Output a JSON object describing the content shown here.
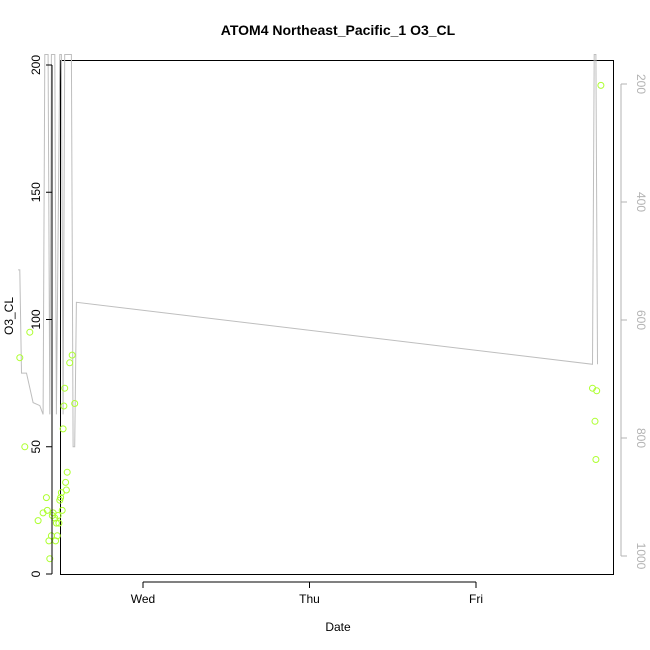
{
  "chart_data": {
    "type": "scatter",
    "title": "ATOM4 Northeast_Pacific_1 O3_CL",
    "xlabel": "Date",
    "ylabel": "O3_CL",
    "x_ticks": [
      "Wed",
      "Thu",
      "Fri"
    ],
    "y_ticks": [
      0,
      50,
      100,
      150,
      200
    ],
    "ylim": [
      0,
      200
    ],
    "y2_ticks": [
      200,
      400,
      600,
      800,
      1000
    ],
    "y2lim": [
      1050,
      150
    ],
    "y2_reversed": true,
    "grid": false,
    "series": [
      {
        "role": "points",
        "color": "#adff2f",
        "y_axis": "left",
        "points": [
          {
            "x": -0.74,
            "y": 85
          },
          {
            "x": -0.71,
            "y": 50
          },
          {
            "x": -0.68,
            "y": 95
          },
          {
            "x": -0.63,
            "y": 21
          },
          {
            "x": -0.6,
            "y": 24
          },
          {
            "x": -0.58,
            "y": 30
          },
          {
            "x": -0.575,
            "y": 25
          },
          {
            "x": -0.565,
            "y": 13
          },
          {
            "x": -0.56,
            "y": 6
          },
          {
            "x": -0.55,
            "y": 15
          },
          {
            "x": -0.545,
            "y": 23
          },
          {
            "x": -0.54,
            "y": 24
          },
          {
            "x": -0.53,
            "y": 22
          },
          {
            "x": -0.525,
            "y": 13
          },
          {
            "x": -0.52,
            "y": 20
          },
          {
            "x": -0.515,
            "y": 15
          },
          {
            "x": -0.51,
            "y": 23
          },
          {
            "x": -0.505,
            "y": 20
          },
          {
            "x": -0.5,
            "y": 29
          },
          {
            "x": -0.495,
            "y": 30
          },
          {
            "x": -0.49,
            "y": 32
          },
          {
            "x": -0.485,
            "y": 25
          },
          {
            "x": -0.48,
            "y": 57
          },
          {
            "x": -0.475,
            "y": 66
          },
          {
            "x": -0.47,
            "y": 73
          },
          {
            "x": -0.465,
            "y": 36
          },
          {
            "x": -0.46,
            "y": 33
          },
          {
            "x": -0.455,
            "y": 40
          },
          {
            "x": -0.44,
            "y": 83
          },
          {
            "x": -0.425,
            "y": 86
          },
          {
            "x": -0.41,
            "y": 67
          },
          {
            "x": 2.7,
            "y": 73
          },
          {
            "x": 2.715,
            "y": 60
          },
          {
            "x": 2.72,
            "y": 45
          },
          {
            "x": 2.725,
            "y": 72
          },
          {
            "x": 2.75,
            "y": 192
          }
        ]
      },
      {
        "role": "line",
        "color": "#bebebe",
        "y_axis": "right",
        "points": [
          {
            "x": -0.75,
            "y": 515
          },
          {
            "x": -0.74,
            "y": 515
          },
          {
            "x": -0.73,
            "y": 690
          },
          {
            "x": -0.7,
            "y": 690
          },
          {
            "x": -0.66,
            "y": 740
          },
          {
            "x": -0.62,
            "y": 745
          },
          {
            "x": -0.6,
            "y": 760
          },
          {
            "x": -0.59,
            "y": 150
          },
          {
            "x": -0.57,
            "y": 150
          },
          {
            "x": -0.56,
            "y": 760
          },
          {
            "x": -0.55,
            "y": 150
          },
          {
            "x": -0.53,
            "y": 150
          },
          {
            "x": -0.52,
            "y": 760
          },
          {
            "x": -0.5,
            "y": 150
          },
          {
            "x": -0.49,
            "y": 150
          },
          {
            "x": -0.48,
            "y": 760
          },
          {
            "x": -0.47,
            "y": 150
          },
          {
            "x": -0.44,
            "y": 150
          },
          {
            "x": -0.43,
            "y": 150
          },
          {
            "x": -0.42,
            "y": 815
          },
          {
            "x": -0.41,
            "y": 815
          },
          {
            "x": -0.4,
            "y": 570
          },
          {
            "x": 2.7,
            "y": 675
          },
          {
            "x": 2.71,
            "y": 150
          },
          {
            "x": 2.72,
            "y": 150
          },
          {
            "x": 2.73,
            "y": 675
          }
        ]
      }
    ]
  }
}
